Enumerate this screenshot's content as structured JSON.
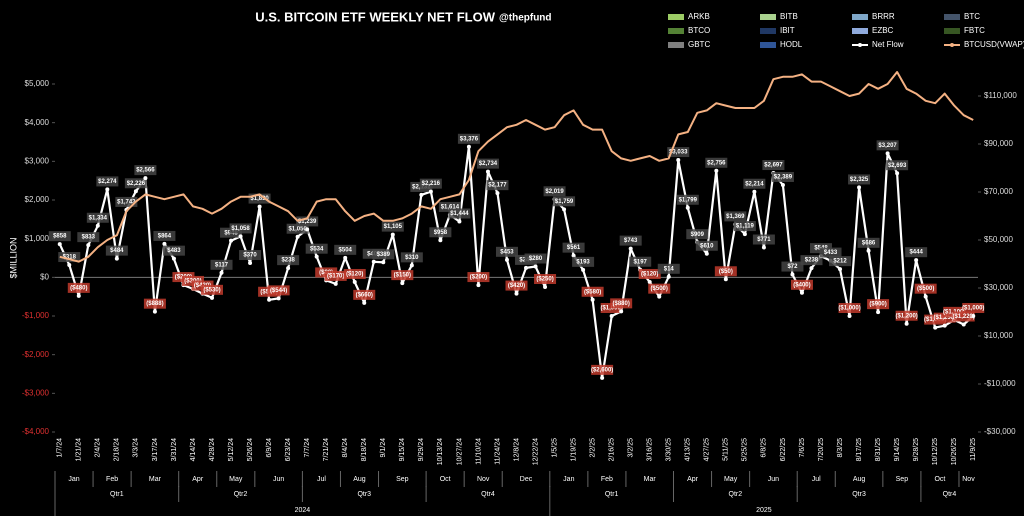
{
  "chart_data": {
    "type": "line",
    "title": "U.S. BITCOIN ETF WEEKLY NET FLOW",
    "subtitle": "@thepfund",
    "y_label": "$MILLION",
    "categories": [
      "1/7/24",
      null,
      "1/21/24",
      null,
      "2/4/24",
      null,
      "2/18/24",
      null,
      "3/3/24",
      null,
      "3/17/24",
      null,
      "3/31/24",
      null,
      "4/14/24",
      null,
      "4/28/24",
      null,
      "5/12/24",
      null,
      "5/26/24",
      null,
      "6/9/24",
      null,
      "6/23/24",
      null,
      "7/7/24",
      null,
      "7/21/24",
      null,
      "8/4/24",
      null,
      "8/18/24",
      null,
      "9/1/24",
      null,
      "9/15/24",
      null,
      "9/29/24",
      null,
      "10/13/24",
      null,
      "10/27/24",
      null,
      "11/10/24",
      null,
      "11/24/24",
      null,
      "12/8/24",
      null,
      "12/22/24",
      null,
      "1/5/25",
      null,
      "1/19/25",
      null,
      "2/2/25",
      null,
      "2/16/25",
      null,
      "3/2/25",
      null,
      "3/16/25",
      null,
      "3/30/25",
      null,
      "4/13/25",
      null,
      "4/27/25",
      null,
      "5/11/25",
      null,
      "5/25/25",
      null,
      "6/8/25",
      null,
      "6/22/25",
      null,
      "7/6/25",
      null,
      "7/20/25",
      null,
      "8/3/25",
      null,
      "8/17/25",
      null,
      "8/31/25",
      null,
      "9/14/25",
      null,
      "9/28/25",
      null,
      "10/12/25",
      null,
      "10/26/25",
      null,
      "11/9/25"
    ],
    "months": [
      "Jan",
      "Feb",
      "Mar",
      "Apr",
      "May",
      "Jun",
      "Jul",
      "Aug",
      "Sep",
      "Oct",
      "Nov",
      "Dec",
      "Jan",
      "Feb",
      "Mar",
      "Apr",
      "May",
      "Jun",
      "Jul",
      "Aug",
      "Sep",
      "Oct",
      "Nov"
    ],
    "quarters": [
      "Qtr1",
      "Qtr2",
      "Qtr3",
      "Qtr4",
      "Qtr1",
      "Qtr2",
      "Qtr3",
      "Qtr4"
    ],
    "years": [
      "2024",
      "2025"
    ],
    "fund_legend": [
      {
        "name": "ARKB",
        "color": "#9ccc65"
      },
      {
        "name": "BITB",
        "color": "#a9d18e"
      },
      {
        "name": "BRRR",
        "color": "#7fa7c9"
      },
      {
        "name": "BTC",
        "color": "#44546a"
      },
      {
        "name": "BTCO",
        "color": "#548235"
      },
      {
        "name": "IBIT",
        "color": "#203864"
      },
      {
        "name": "EZBC",
        "color": "#8faadc"
      },
      {
        "name": "FBTC",
        "color": "#375623"
      },
      {
        "name": "GBTC",
        "color": "#7f7f7f"
      },
      {
        "name": "HODL",
        "color": "#2f5597"
      }
    ],
    "series": [
      {
        "name": "Net Flow",
        "color": "#ffffff",
        "values": [
          858,
          318,
          -480,
          833,
          1334,
          2274,
          484,
          1743,
          2226,
          2566,
          -888,
          864,
          483,
          -200,
          -300,
          -420,
          -530,
          117,
          948,
          1058,
          370,
          1830,
          -580,
          -544,
          238,
          1050,
          1239,
          534,
          -80,
          -170,
          504,
          -120,
          -660,
          403,
          389,
          1105,
          -150,
          310,
          2131,
          2216,
          958,
          1614,
          1444,
          3376,
          -200,
          2734,
          2177,
          453,
          -420,
          244,
          280,
          -250,
          2019,
          1759,
          561,
          193,
          -580,
          -2600,
          -1000,
          -880,
          743,
          197,
          -120,
          -500,
          14,
          3033,
          1799,
          909,
          610,
          2756,
          -50,
          1369,
          1119,
          2214,
          771,
          2697,
          2389,
          72,
          -400,
          238,
          548,
          433,
          212,
          -1000,
          2325,
          686,
          -900,
          3207,
          2693,
          -1200,
          444,
          -500,
          -1300,
          -1250,
          -1100,
          -1220,
          -1000
        ],
        "value_labels": [
          "$858",
          "$318",
          "($480)",
          "$833",
          "$1,334",
          "$2,274",
          "$484",
          "$1,743",
          "$2,226",
          "$2,566",
          "($888)",
          "$864",
          "$483",
          "($200)",
          "($300)",
          "($420)",
          "($530)",
          "$117",
          "$948",
          "$1,058",
          "$370",
          "$1,830",
          "($580)",
          "($544)",
          "$238",
          "$1,050",
          "$1,239",
          "$534",
          "($80)",
          "($170)",
          "$504",
          "($120)",
          "($660)",
          "$403",
          "$389",
          "$1,105",
          "($150)",
          "$310",
          "$2,131",
          "$2,216",
          "$958",
          "$1,614",
          "$1,444",
          "$3,376",
          "($200)",
          "$2,734",
          "$2,177",
          "$453",
          "($420)",
          "$244",
          "$280",
          "($250)",
          "$2,019",
          "$1,759",
          "$561",
          "$193",
          "($580)",
          "($2,600)",
          "($1,000)",
          "($880)",
          "$743",
          "$197",
          "($120)",
          "($500)",
          "$14",
          "$3,033",
          "$1,799",
          "$909",
          "$610",
          "$2,756",
          "($50)",
          "$1,369",
          "$1,119",
          "$2,214",
          "$771",
          "$2,697",
          "$2,389",
          "$72",
          "($400)",
          "$238",
          "$548",
          "$433",
          "$212",
          "($1,000)",
          "$2,325",
          "$686",
          "($900)",
          "$3,207",
          "$2,693",
          "($1,200)",
          "$444",
          "($500)",
          "($1,300)",
          "($1,250)",
          "($1,100)",
          "($1,220)",
          "($1,000)"
        ]
      },
      {
        "name": "BTCUSD(VWAP)",
        "color": "#f4b183",
        "axis": "y2",
        "values": [
          43000,
          42000,
          41000,
          43000,
          47000,
          50000,
          52000,
          62000,
          66000,
          69000,
          68000,
          67000,
          68000,
          69000,
          64000,
          63000,
          61000,
          63000,
          66000,
          68000,
          68000,
          69000,
          66000,
          64000,
          62000,
          58000,
          59000,
          66000,
          67000,
          67000,
          62000,
          58000,
          60000,
          61000,
          58000,
          58000,
          59000,
          61000,
          64000,
          63000,
          67000,
          68000,
          69000,
          75000,
          87000,
          91000,
          94000,
          97000,
          98000,
          100000,
          98000,
          96000,
          97000,
          102000,
          104000,
          98000,
          96000,
          96000,
          87000,
          84000,
          83000,
          84000,
          85000,
          83000,
          84000,
          94000,
          95000,
          103000,
          104000,
          107000,
          106000,
          105000,
          105000,
          105000,
          108000,
          117000,
          118000,
          118000,
          119000,
          116000,
          116000,
          114000,
          112000,
          110000,
          111000,
          115000,
          113000,
          115000,
          120000,
          113000,
          111000,
          108000,
          107000,
          111000,
          106000,
          102000,
          100000
        ]
      }
    ],
    "ylim": [
      -4000,
      5000
    ],
    "yticks": [
      {
        "value": 5000,
        "label": "$5,000"
      },
      {
        "value": 4000,
        "label": "$4,000"
      },
      {
        "value": 3000,
        "label": "$3,000"
      },
      {
        "value": 2000,
        "label": "$2,000"
      },
      {
        "value": 1000,
        "label": "$1,000"
      },
      {
        "value": 0,
        "label": "$0"
      },
      {
        "value": -1000,
        "label": "-$1,000"
      },
      {
        "value": -2000,
        "label": "-$2,000"
      },
      {
        "value": -3000,
        "label": "-$3,000"
      },
      {
        "value": -4000,
        "label": "-$4,000"
      }
    ],
    "y2lim": [
      -30000,
      115000
    ],
    "y2ticks": [
      {
        "value": 110000,
        "label": "$110,000"
      },
      {
        "value": 90000,
        "label": "$90,000"
      },
      {
        "value": 70000,
        "label": "$70,000"
      },
      {
        "value": 50000,
        "label": "$50,000"
      },
      {
        "value": 30000,
        "label": "$30,000"
      },
      {
        "value": 10000,
        "label": "$10,000"
      },
      {
        "value": -10000,
        "label": "-$10,000"
      },
      {
        "value": -30000,
        "label": "-$30,000"
      }
    ]
  }
}
